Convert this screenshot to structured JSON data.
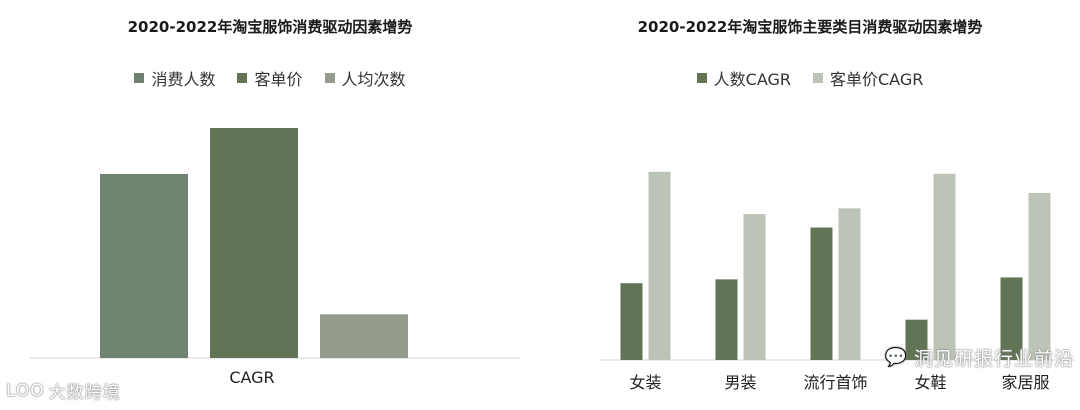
{
  "chart_data": [
    {
      "type": "bar",
      "title": "2020-2022年淘宝服饰消费驱动因素增势",
      "categories": [
        "CAGR"
      ],
      "series": [
        {
          "name": "消费人数",
          "color": "#6f8370",
          "values": [
            0.8
          ]
        },
        {
          "name": "客单价",
          "color": "#627456",
          "values": [
            1.0
          ]
        },
        {
          "name": "人均次数",
          "color": "#949c8d",
          "values": [
            0.19
          ]
        }
      ],
      "ylim": [
        0,
        1.0
      ],
      "grid": false,
      "legend_position": "top"
    },
    {
      "type": "bar",
      "title": "2020-2022年淘宝服饰主要类目消费驱动因素增势",
      "categories": [
        "女装",
        "男装",
        "流行首饰",
        "女鞋",
        "家居服"
      ],
      "series": [
        {
          "name": "人数CAGR",
          "color": "#627456",
          "values": [
            0.4,
            0.42,
            0.69,
            0.21,
            0.43
          ]
        },
        {
          "name": "客单价CAGR",
          "color": "#bcc3b7",
          "values": [
            0.98,
            0.76,
            0.79,
            0.97,
            0.87
          ]
        }
      ],
      "ylim": [
        0,
        1.0
      ],
      "grid": false,
      "legend_position": "top"
    }
  ],
  "watermarks": {
    "right": "洞见研报行业前沿",
    "left": "大数跨境",
    "left_icon": "LOO"
  }
}
